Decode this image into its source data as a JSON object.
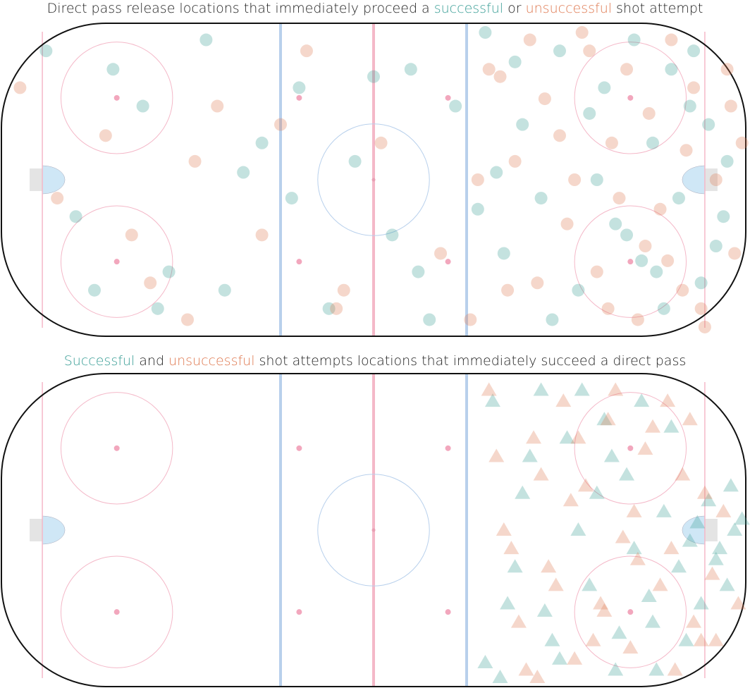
{
  "chart_data": [
    {
      "type": "scatter",
      "marker": "circle",
      "title": [
        "Direct pass release locations that immediately proceed a ",
        "successful",
        " or ",
        "unsuccessful",
        " shot attempt"
      ],
      "xlim": [
        -100,
        100
      ],
      "ylim": [
        -42.5,
        42.5
      ],
      "series": [
        {
          "color": "#3a9e96",
          "x": [
            -88,
            -80,
            -70,
            -62,
            -55,
            -45,
            -40,
            -30,
            -20,
            -12,
            -5,
            5,
            10,
            15,
            22,
            30,
            35,
            40,
            45,
            50,
            55,
            60,
            62,
            65,
            70,
            72,
            75,
            78,
            80,
            82,
            85,
            88,
            90,
            92,
            95,
            -75,
            -58,
            -35,
            -22,
            0,
            12,
            28,
            38,
            48,
            58,
            68,
            76,
            86,
            94,
            33
          ],
          "y": [
            35,
            -10,
            30,
            20,
            -25,
            38,
            -30,
            10,
            25,
            -35,
            5,
            -15,
            30,
            -38,
            20,
            40,
            -20,
            15,
            -5,
            35,
            -30,
            0,
            25,
            -12,
            38,
            -22,
            10,
            -35,
            30,
            -5,
            20,
            -28,
            15,
            -18,
            5,
            -30,
            -35,
            2,
            -5,
            28,
            -25,
            -8,
            32,
            -38,
            18,
            -15,
            -25,
            35,
            -10,
            2
          ]
        },
        {
          "color": "#df7a52",
          "x": [
            -95,
            -85,
            -72,
            -60,
            -50,
            -42,
            -30,
            -18,
            -8,
            2,
            18,
            28,
            31,
            36,
            42,
            46,
            52,
            56,
            60,
            64,
            68,
            71,
            74,
            77,
            80,
            83,
            86,
            89,
            92,
            95,
            97,
            99,
            -65,
            -48,
            -25,
            -10,
            26,
            34,
            44,
            54,
            63,
            73,
            84,
            96,
            38,
            58,
            88,
            50,
            66,
            79
          ],
          "y": [
            25,
            -5,
            12,
            -28,
            -38,
            20,
            -15,
            35,
            -30,
            10,
            -20,
            0,
            30,
            -30,
            38,
            22,
            -12,
            40,
            -25,
            10,
            30,
            -38,
            18,
            -8,
            38,
            -30,
            25,
            -40,
            0,
            30,
            -20,
            10,
            -15,
            5,
            15,
            -35,
            -38,
            28,
            -28,
            0,
            -35,
            -18,
            8,
            20,
            5,
            35,
            -35,
            12,
            -5,
            -22
          ]
        }
      ]
    },
    {
      "type": "scatter",
      "marker": "triangle",
      "title": [
        "Successful",
        " and ",
        "unsuccessful",
        " shot attempts locations that immediately succeed a direct pass"
      ],
      "xlim": [
        -100,
        100
      ],
      "ylim": [
        -42.5,
        42.5
      ],
      "series": [
        {
          "color": "#3a9e96",
          "x": [
            32,
            36,
            40,
            45,
            48,
            52,
            55,
            58,
            62,
            65,
            68,
            70,
            72,
            75,
            78,
            80,
            82,
            85,
            87,
            88,
            90,
            92,
            95,
            97,
            99,
            34,
            42,
            50,
            60,
            66,
            74,
            84,
            93,
            96,
            30,
            38,
            46,
            56,
            64,
            76
          ],
          "y": [
            35,
            -20,
            10,
            38,
            -30,
            25,
            0,
            -15,
            30,
            -38,
            15,
            -5,
            35,
            -25,
            5,
            28,
            -10,
            -3,
            2,
            -20,
            8,
            -8,
            -15,
            0,
            3,
            -40,
            20,
            -35,
            10,
            -28,
            -18,
            -30,
            -5,
            12,
            -36,
            -10,
            -22,
            38,
            20,
            -38
          ]
        },
        {
          "color": "#df7a52",
          "x": [
            31,
            35,
            39,
            43,
            47,
            51,
            54,
            57,
            61,
            63,
            67,
            69,
            73,
            77,
            79,
            81,
            83,
            86,
            89,
            91,
            94,
            98,
            33,
            41,
            49,
            53,
            59,
            65,
            71,
            75,
            85,
            92,
            37,
            45,
            62,
            70,
            80,
            88,
            44,
            55
          ],
          "y": [
            38,
            0,
            -25,
            25,
            -10,
            35,
            -35,
            12,
            -20,
            30,
            -2,
            -32,
            22,
            -15,
            35,
            -38,
            15,
            -25,
            10,
            -12,
            5,
            -20,
            20,
            -38,
            -15,
            8,
            -30,
            38,
            -8,
            28,
            30,
            -30,
            -5,
            15,
            -22,
            5,
            -5,
            -30,
            -40,
            25
          ]
        }
      ]
    }
  ]
}
